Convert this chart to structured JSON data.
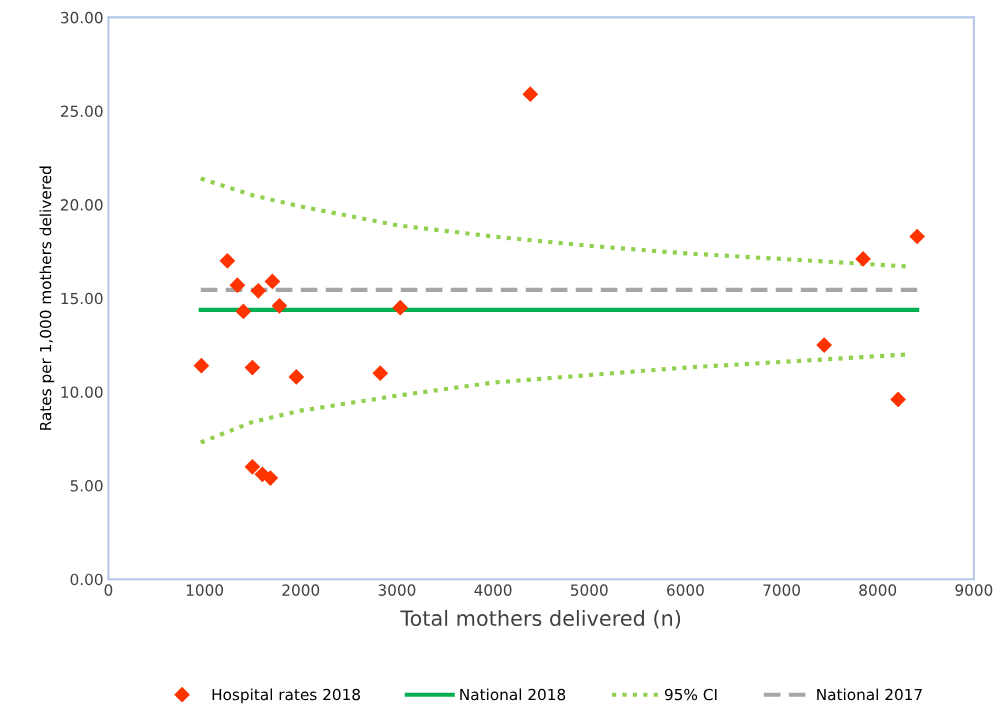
{
  "chart_data": {
    "type": "scatter",
    "xlabel": "Total mothers delivered (n)",
    "ylabel": "Rates per 1,000 mothers delivered",
    "xlim": [
      0,
      9000
    ],
    "xticks": [
      0,
      1000,
      2000,
      3000,
      4000,
      5000,
      6000,
      7000,
      8000,
      9000
    ],
    "ylim": [
      0,
      30
    ],
    "yticks": [
      {
        "value": 0,
        "label": "0.00"
      },
      {
        "value": 5,
        "label": "5.00"
      },
      {
        "value": 10,
        "label": "10.00"
      },
      {
        "value": 15,
        "label": "15.00"
      },
      {
        "value": 20,
        "label": "20.00"
      },
      {
        "value": 25,
        "label": "25.00"
      },
      {
        "value": 30,
        "label": "30.00"
      }
    ],
    "grid": false,
    "legend": "bottom",
    "series": [
      {
        "name": "Hospital rates 2018",
        "marker": "diamond",
        "color": "#ff3300",
        "x": [
          967,
          1237,
          1341,
          1403,
          1497,
          1497,
          1559,
          1601,
          1684,
          1705,
          1778,
          1954,
          2827,
          3035,
          4387,
          7443,
          7848,
          8212,
          8410
        ],
        "values": [
          11.4,
          17.0,
          15.7,
          14.3,
          6.0,
          11.3,
          15.4,
          5.6,
          5.4,
          15.9,
          14.6,
          10.8,
          11.0,
          14.5,
          25.9,
          12.5,
          17.1,
          9.6,
          18.3
        ]
      },
      {
        "name": "National 2018",
        "type": "line",
        "line_style": "solid",
        "color": "#00b050",
        "x": [
          960,
          8410
        ],
        "values": [
          14.38,
          14.38
        ]
      },
      {
        "name": "95% CI",
        "type": "line",
        "line_style": "dotted",
        "color": "#92d050",
        "x": [
          960,
          1500,
          2000,
          3000,
          4000,
          5000,
          6000,
          7000,
          8300
        ],
        "values": [
          21.4,
          20.5,
          19.9,
          18.9,
          18.3,
          17.8,
          17.4,
          17.1,
          16.7
        ]
      },
      {
        "type": "line",
        "line_style": "dotted",
        "color": "#92d050",
        "x": [
          960,
          1500,
          2000,
          3000,
          4000,
          5000,
          6000,
          7000,
          8300
        ],
        "values": [
          7.3,
          8.4,
          9.0,
          9.8,
          10.5,
          10.9,
          11.3,
          11.6,
          12.0
        ]
      },
      {
        "name": "National 2017",
        "type": "line",
        "line_style": "dashed",
        "color": "#a6a6a6",
        "x": [
          960,
          8410
        ],
        "values": [
          15.45,
          15.45
        ]
      }
    ]
  }
}
